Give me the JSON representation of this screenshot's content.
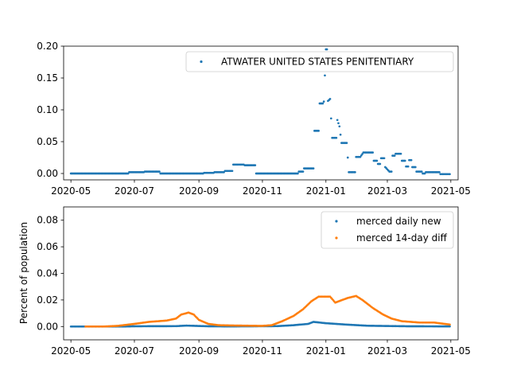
{
  "colors": {
    "blue": "#1f77b4",
    "orange": "#ff7f0e"
  },
  "chart_data": [
    {
      "type": "scatter",
      "title": "",
      "xlabel": "",
      "ylabel": "",
      "x_ticks": [
        "2020-05",
        "2020-07",
        "2020-09",
        "2020-11",
        "2021-01",
        "2021-03",
        "2021-05"
      ],
      "y_ticks": [
        "0.00",
        "0.05",
        "0.10",
        "0.15",
        "0.20"
      ],
      "xlim": [
        "2020-04-24",
        "2021-05-08"
      ],
      "ylim": [
        -0.01,
        0.2
      ],
      "legend_position": "upper right",
      "series": [
        {
          "name": "ATWATER UNITED STATES PENITENTIARY",
          "color": "#1f77b4",
          "points": [
            [
              "2020-05-01",
              0.0
            ],
            [
              "2020-06-25",
              0.0
            ],
            [
              "2020-06-26",
              0.002
            ],
            [
              "2020-07-10",
              0.002
            ],
            [
              "2020-07-11",
              0.003
            ],
            [
              "2020-07-25",
              0.003
            ],
            [
              "2020-07-26",
              0.0
            ],
            [
              "2020-09-05",
              0.0
            ],
            [
              "2020-09-06",
              0.001
            ],
            [
              "2020-09-15",
              0.001
            ],
            [
              "2020-09-16",
              0.002
            ],
            [
              "2020-09-25",
              0.002
            ],
            [
              "2020-09-26",
              0.004
            ],
            [
              "2020-10-03",
              0.004
            ],
            [
              "2020-10-04",
              0.014
            ],
            [
              "2020-10-14",
              0.014
            ],
            [
              "2020-10-15",
              0.013
            ],
            [
              "2020-10-25",
              0.013
            ],
            [
              "2020-10-26",
              0.0
            ],
            [
              "2020-12-05",
              0.0
            ],
            [
              "2020-12-06",
              0.003
            ],
            [
              "2020-12-10",
              0.003
            ],
            [
              "2020-12-11",
              0.008
            ],
            [
              "2020-12-20",
              0.008
            ],
            [
              "2020-12-21",
              0.067
            ],
            [
              "2020-12-25",
              0.067
            ],
            [
              "2020-12-26",
              0.11
            ],
            [
              "2020-12-29",
              0.11
            ],
            [
              "2020-12-30",
              0.113
            ],
            [
              "2021-01-01",
              0.195
            ],
            [
              "2021-01-02",
              0.195
            ],
            [
              "2021-01-03",
              0.114
            ],
            [
              "2021-01-05",
              0.117
            ],
            [
              "2021-01-07",
              0.056
            ],
            [
              "2021-01-11",
              0.056
            ],
            [
              "2021-01-12",
              0.084
            ],
            [
              "2021-01-14",
              0.074
            ],
            [
              "2021-01-16",
              0.048
            ],
            [
              "2021-01-21",
              0.048
            ],
            [
              "2021-01-23",
              0.002
            ],
            [
              "2021-01-29",
              0.002
            ],
            [
              "2021-01-30",
              0.026
            ],
            [
              "2021-02-03",
              0.026
            ],
            [
              "2021-02-06",
              0.033
            ],
            [
              "2021-02-15",
              0.033
            ],
            [
              "2021-02-16",
              0.02
            ],
            [
              "2021-02-19",
              0.02
            ],
            [
              "2021-02-20",
              0.015
            ],
            [
              "2021-02-22",
              0.015
            ],
            [
              "2021-02-23",
              0.024
            ],
            [
              "2021-02-26",
              0.024
            ],
            [
              "2021-02-27",
              0.01
            ],
            [
              "2021-03-03",
              0.003
            ],
            [
              "2021-03-05",
              0.003
            ],
            [
              "2021-03-06",
              0.028
            ],
            [
              "2021-03-08",
              0.028
            ],
            [
              "2021-03-09",
              0.031
            ],
            [
              "2021-03-14",
              0.031
            ],
            [
              "2021-03-15",
              0.02
            ],
            [
              "2021-03-18",
              0.02
            ],
            [
              "2021-03-19",
              0.011
            ],
            [
              "2021-03-21",
              0.011
            ],
            [
              "2021-03-22",
              0.021
            ],
            [
              "2021-03-24",
              0.021
            ],
            [
              "2021-03-25",
              0.01
            ],
            [
              "2021-03-28",
              0.01
            ],
            [
              "2021-03-29",
              0.003
            ],
            [
              "2021-04-03",
              0.003
            ],
            [
              "2021-04-04",
              0.0
            ],
            [
              "2021-04-06",
              0.0
            ],
            [
              "2021-04-07",
              0.002
            ],
            [
              "2021-04-20",
              0.002
            ],
            [
              "2021-04-21",
              -0.001
            ],
            [
              "2021-04-30",
              -0.001
            ]
          ]
        }
      ]
    },
    {
      "type": "scatter",
      "title": "",
      "xlabel": "",
      "ylabel": "Percent of population",
      "x_ticks": [
        "2020-05",
        "2020-07",
        "2020-09",
        "2020-11",
        "2021-01",
        "2021-03",
        "2021-05"
      ],
      "y_ticks": [
        "0.00",
        "0.02",
        "0.04",
        "0.06",
        "0.08"
      ],
      "xlim": [
        "2020-04-24",
        "2021-05-08"
      ],
      "ylim": [
        -0.01,
        0.09
      ],
      "legend_position": "upper right",
      "series": [
        {
          "name": "merced daily new",
          "color": "#1f77b4",
          "points": [
            [
              "2020-05-01",
              0.0
            ],
            [
              "2020-06-20",
              0.0
            ],
            [
              "2020-07-01",
              0.0002
            ],
            [
              "2020-08-10",
              0.0003
            ],
            [
              "2020-08-20",
              0.0007
            ],
            [
              "2020-09-10",
              0.0002
            ],
            [
              "2020-10-01",
              0.0001
            ],
            [
              "2020-11-15",
              0.0003
            ],
            [
              "2020-12-01",
              0.001
            ],
            [
              "2020-12-15",
              0.002
            ],
            [
              "2020-12-20",
              0.0035
            ],
            [
              "2021-01-01",
              0.0025
            ],
            [
              "2021-01-20",
              0.0015
            ],
            [
              "2021-02-10",
              0.0006
            ],
            [
              "2021-03-01",
              0.0004
            ],
            [
              "2021-03-20",
              0.0002
            ],
            [
              "2021-04-30",
              0.0001
            ]
          ]
        },
        {
          "name": "merced 14-day diff",
          "color": "#ff7f0e",
          "points": [
            [
              "2020-05-15",
              0.0
            ],
            [
              "2020-06-01",
              0.0
            ],
            [
              "2020-06-15",
              0.0005
            ],
            [
              "2020-07-01",
              0.002
            ],
            [
              "2020-07-15",
              0.0035
            ],
            [
              "2020-08-01",
              0.0045
            ],
            [
              "2020-08-10",
              0.006
            ],
            [
              "2020-08-15",
              0.009
            ],
            [
              "2020-08-22",
              0.0105
            ],
            [
              "2020-08-27",
              0.009
            ],
            [
              "2020-09-01",
              0.005
            ],
            [
              "2020-09-10",
              0.002
            ],
            [
              "2020-09-20",
              0.001
            ],
            [
              "2020-10-01",
              0.0008
            ],
            [
              "2020-10-29",
              0.0005
            ],
            [
              "2020-11-01",
              0.0005
            ],
            [
              "2020-11-10",
              0.001
            ],
            [
              "2020-11-20",
              0.004
            ],
            [
              "2020-12-01",
              0.008
            ],
            [
              "2020-12-10",
              0.013
            ],
            [
              "2020-12-18",
              0.019
            ],
            [
              "2020-12-25",
              0.0225
            ],
            [
              "2021-01-05",
              0.0225
            ],
            [
              "2021-01-10",
              0.018
            ],
            [
              "2021-01-15",
              0.0195
            ],
            [
              "2021-01-22",
              0.0215
            ],
            [
              "2021-01-30",
              0.023
            ],
            [
              "2021-02-05",
              0.02
            ],
            [
              "2021-02-15",
              0.014
            ],
            [
              "2021-02-25",
              0.009
            ],
            [
              "2021-03-05",
              0.006
            ],
            [
              "2021-03-15",
              0.004
            ],
            [
              "2021-04-01",
              0.003
            ],
            [
              "2021-04-15",
              0.003
            ],
            [
              "2021-04-25",
              0.002
            ],
            [
              "2021-04-30",
              0.0015
            ]
          ]
        }
      ]
    }
  ]
}
